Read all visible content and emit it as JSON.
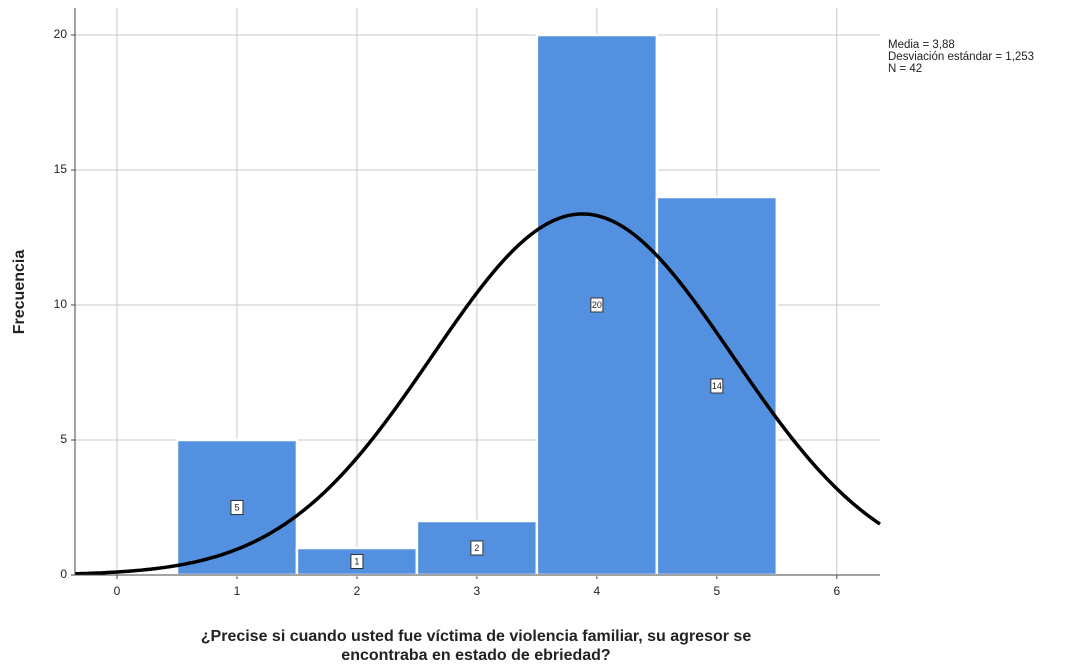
{
  "chart_data": {
    "type": "histogram",
    "ylabel": "Frecuencia",
    "xlabel": [
      "¿Precise si cuando usted fue víctima de violencia familiar, su agresor se",
      "encontraba en estado de ebriedad?"
    ],
    "bins": [
      0.5,
      1.5,
      2.5,
      3.5,
      4.5,
      5.5
    ],
    "values": [
      5,
      1,
      2,
      20,
      14
    ],
    "color": "#5390e0",
    "xlim": [
      -0.35,
      6.36
    ],
    "xticks": [
      0,
      1,
      2,
      3,
      4,
      5,
      6
    ],
    "ylim": [
      0,
      21
    ],
    "yticks": [
      0,
      5,
      10,
      15,
      20
    ],
    "grid": true,
    "normal_curve": {
      "mean": {
        "value": 3.88,
        "label": "Media = 3,88"
      },
      "sd": {
        "value": 1.253,
        "label": "Desviación estándar = 1,253"
      },
      "n": {
        "value": 42,
        "label": "N = 42"
      }
    }
  }
}
